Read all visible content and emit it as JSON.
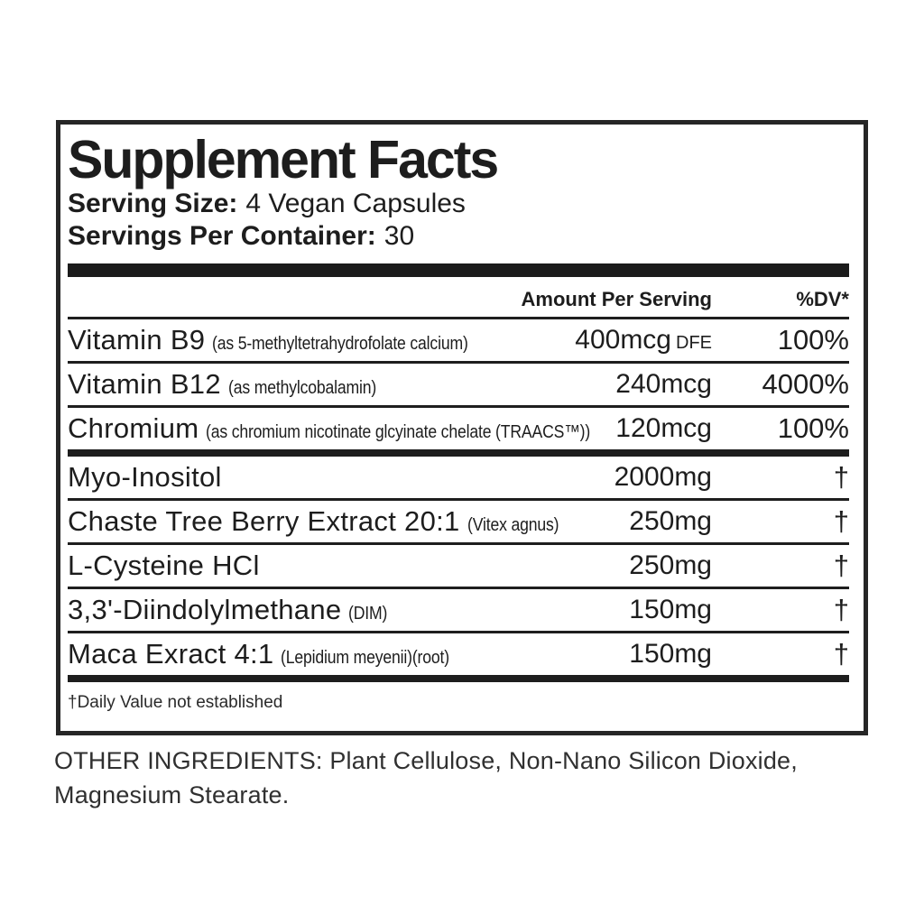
{
  "label": {
    "title": "Supplement Facts",
    "serving_size_label": "Serving Size:",
    "serving_size_value": "4 Vegan Capsules",
    "servings_per_container_label": "Servings Per Container:",
    "servings_per_container_value": "30",
    "col_amount": "Amount Per Serving",
    "col_dv": "%DV*",
    "rows": [
      {
        "name": "Vitamin B9",
        "detail": "(as 5-methyltetrahydrofolate calcium)",
        "amount": "400mcg",
        "amount_suffix": "DFE",
        "dv": "100%"
      },
      {
        "name": "Vitamin B12",
        "detail": "(as methylcobalamin)",
        "amount": "240mcg",
        "dv": "4000%"
      },
      {
        "name": "Chromium",
        "detail": "(as chromium nicotinate glcyinate chelate (TRAACS™))",
        "amount": "120mcg",
        "dv": "100%"
      },
      {
        "name": "Myo-Inositol",
        "detail": "",
        "amount": "2000mg",
        "dv": "†"
      },
      {
        "name": "Chaste Tree Berry Extract 20:1",
        "detail": "(Vitex agnus)",
        "amount": "250mg",
        "dv": "†"
      },
      {
        "name": "L-Cysteine HCl",
        "detail": "",
        "amount": "250mg",
        "dv": "†"
      },
      {
        "name": "3,3'-Diindolylmethane",
        "detail": "(DIM)",
        "amount": "150mg",
        "dv": "†"
      },
      {
        "name": "Maca Exract 4:1",
        "detail": "(Lepidium meyenii)(root)",
        "amount": "150mg",
        "dv": "†"
      }
    ],
    "footnote": "†Daily Value not established",
    "other_ingredients": "OTHER INGREDIENTS: Plant Cellulose, Non-Nano Silicon Dioxide, Magnesium Stearate."
  },
  "colors": {
    "text": "#1d1d1d",
    "border": "#262626",
    "bar": "#1b1b1b",
    "background": "#ffffff"
  }
}
